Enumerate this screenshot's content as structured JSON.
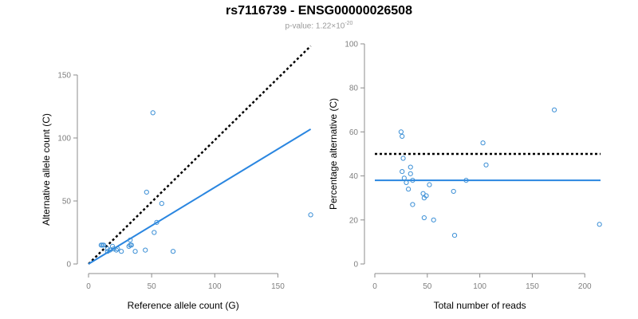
{
  "header": {
    "title": "rs7116739 - ENSG00000026508",
    "pvalue_prefix": "p-value: 1.22×10",
    "pvalue_exp": "-20"
  },
  "colors": {
    "points": "#3b8fd6",
    "fit": "#2a86e0",
    "reference": "#000000",
    "axis": "#8c8c8c"
  },
  "chart_data": [
    {
      "type": "scatter",
      "title": "",
      "xlabel": "Reference allele count (G)",
      "ylabel": "Alternative allele count (C)",
      "xlim": [
        0,
        175
      ],
      "ylim": [
        0,
        150
      ],
      "xticks": [
        0,
        50,
        100,
        150
      ],
      "yticks": [
        0,
        50,
        100,
        150
      ],
      "grid": false,
      "legend": "none",
      "points": [
        {
          "x": 10,
          "y": 15
        },
        {
          "x": 11,
          "y": 15
        },
        {
          "x": 12,
          "y": 15
        },
        {
          "x": 15,
          "y": 12
        },
        {
          "x": 15,
          "y": 10
        },
        {
          "x": 17,
          "y": 11
        },
        {
          "x": 19,
          "y": 14
        },
        {
          "x": 20,
          "y": 12
        },
        {
          "x": 22,
          "y": 11
        },
        {
          "x": 23,
          "y": 12
        },
        {
          "x": 26,
          "y": 10
        },
        {
          "x": 32,
          "y": 14
        },
        {
          "x": 33,
          "y": 15
        },
        {
          "x": 33,
          "y": 19
        },
        {
          "x": 34,
          "y": 15
        },
        {
          "x": 37,
          "y": 10
        },
        {
          "x": 45,
          "y": 11
        },
        {
          "x": 46,
          "y": 57
        },
        {
          "x": 51,
          "y": 120
        },
        {
          "x": 52,
          "y": 25
        },
        {
          "x": 54,
          "y": 33
        },
        {
          "x": 58,
          "y": 48
        },
        {
          "x": 67,
          "y": 10
        },
        {
          "x": 176,
          "y": 39
        }
      ],
      "fit_line": {
        "x": [
          0,
          176
        ],
        "y": [
          0,
          107
        ]
      },
      "reference_line": {
        "x": [
          0,
          176
        ],
        "y": [
          0,
          173
        ]
      }
    },
    {
      "type": "scatter",
      "title": "",
      "xlabel": "Total number of reads",
      "ylabel": "Percentage alternative (C)",
      "xlim": [
        0,
        215
      ],
      "ylim": [
        0,
        100
      ],
      "xticks": [
        0,
        50,
        100,
        150,
        200
      ],
      "yticks": [
        0,
        20,
        40,
        60,
        80,
        100
      ],
      "grid": false,
      "legend": "none",
      "points": [
        {
          "x": 25,
          "y": 60
        },
        {
          "x": 26,
          "y": 58
        },
        {
          "x": 27,
          "y": 48
        },
        {
          "x": 26,
          "y": 42
        },
        {
          "x": 28,
          "y": 39
        },
        {
          "x": 30,
          "y": 37
        },
        {
          "x": 32,
          "y": 34
        },
        {
          "x": 34,
          "y": 41
        },
        {
          "x": 34,
          "y": 44
        },
        {
          "x": 36,
          "y": 38
        },
        {
          "x": 36,
          "y": 27
        },
        {
          "x": 46,
          "y": 32
        },
        {
          "x": 47,
          "y": 21
        },
        {
          "x": 47,
          "y": 30
        },
        {
          "x": 49,
          "y": 31
        },
        {
          "x": 52,
          "y": 36
        },
        {
          "x": 56,
          "y": 20
        },
        {
          "x": 75,
          "y": 33
        },
        {
          "x": 76,
          "y": 13
        },
        {
          "x": 87,
          "y": 38
        },
        {
          "x": 103,
          "y": 55
        },
        {
          "x": 106,
          "y": 45
        },
        {
          "x": 171,
          "y": 70
        },
        {
          "x": 214,
          "y": 18
        }
      ],
      "fit_line": {
        "x": [
          0,
          215
        ],
        "y": [
          38,
          38
        ]
      },
      "reference_line": {
        "x": [
          0,
          215
        ],
        "y": [
          50,
          50
        ]
      }
    }
  ]
}
